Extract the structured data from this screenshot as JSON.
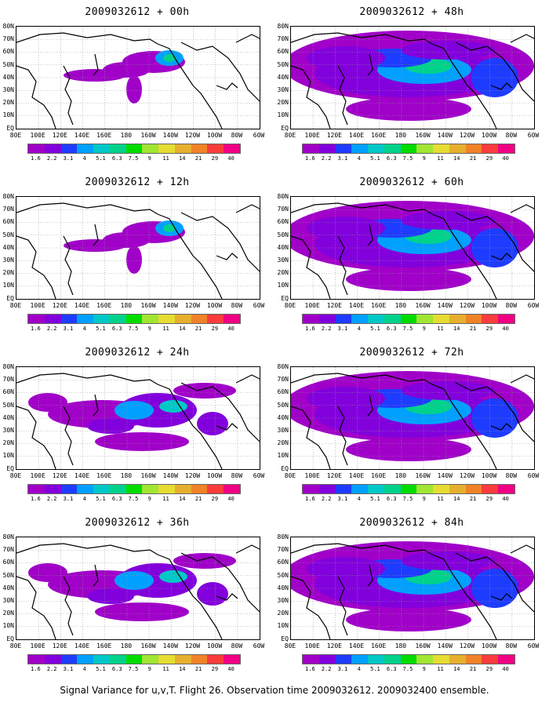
{
  "footer": "Signal Variance for u,v,T. Flight 26. Observation time 2009032612. 2009032400 ensemble.",
  "lat_labels": [
    "80N",
    "70N",
    "60N",
    "50N",
    "40N",
    "30N",
    "20N",
    "10N",
    "EQ"
  ],
  "lon_labels": [
    "80E",
    "100E",
    "120E",
    "140E",
    "160E",
    "180",
    "160W",
    "140W",
    "120W",
    "100W",
    "80W",
    "60W"
  ],
  "colorbar": {
    "labels": [
      "1.6",
      "2.2",
      "3.1",
      "4",
      "5.1",
      "6.3",
      "7.5",
      "9",
      "11",
      "14",
      "21",
      "29",
      "40"
    ],
    "colors": [
      "#a000c8",
      "#8200dc",
      "#1e3cff",
      "#00a0ff",
      "#00c8c8",
      "#00d28c",
      "#00dc00",
      "#a0e632",
      "#e6dc32",
      "#e6af2d",
      "#f08228",
      "#fa3c3c",
      "#f00082"
    ]
  },
  "panels": [
    {
      "id": "00h",
      "title": "2009032612 + 00h",
      "coverage": "low"
    },
    {
      "id": "48h",
      "title": "2009032612 + 48h",
      "coverage": "high"
    },
    {
      "id": "12h",
      "title": "2009032612 + 12h",
      "coverage": "low"
    },
    {
      "id": "60h",
      "title": "2009032612 + 60h",
      "coverage": "high"
    },
    {
      "id": "24h",
      "title": "2009032612 + 24h",
      "coverage": "medium"
    },
    {
      "id": "72h",
      "title": "2009032612 + 72h",
      "coverage": "high"
    },
    {
      "id": "36h",
      "title": "2009032612 + 36h",
      "coverage": "medium"
    },
    {
      "id": "84h",
      "title": "2009032612 + 84h",
      "coverage": "high"
    }
  ]
}
